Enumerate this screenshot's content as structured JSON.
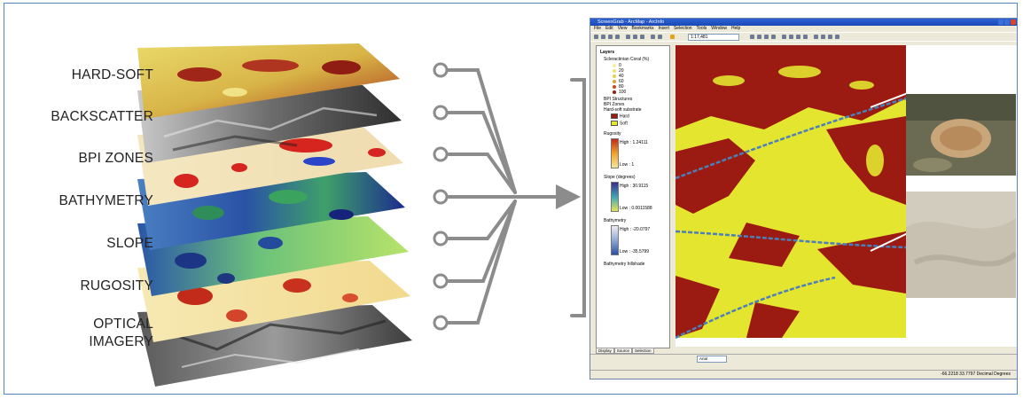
{
  "layers": [
    {
      "label": "HARD-SOFT"
    },
    {
      "label": "BACKSCATTER"
    },
    {
      "label": "BPI ZONES"
    },
    {
      "label": "BATHYMETRY"
    },
    {
      "label": "SLOPE"
    },
    {
      "label": "RUGOSITY"
    },
    {
      "label": "OPTICAL",
      "label2": "IMAGERY"
    }
  ],
  "arcmap": {
    "title": "ScreenGrab - ArcMap - ArcInfo",
    "menu": [
      "File",
      "Edit",
      "View",
      "Bookmarks",
      "Insert",
      "Selection",
      "Tools",
      "Window",
      "Help"
    ],
    "scale": "1:17,481",
    "toc": {
      "root": "Layers",
      "coral": "Scleractinian Coral (%)",
      "coral_classes": [
        "0",
        "20",
        "40",
        "60",
        "80",
        "100"
      ],
      "bpi_structures": "BPI Structures",
      "bpi_zones": "BPI Zones",
      "hard_soft": "Hard-soft substrate",
      "hard": "Hard",
      "soft": "Soft",
      "rugosity": "Rugosity",
      "rugosity_high": "High : 1.24111",
      "rugosity_low": "Low : 1",
      "slope": "Slope (degrees)",
      "slope_high": "High : 30.9115",
      "slope_low": "Low : 0.0011588",
      "bathymetry": "Bathymetry",
      "bathy_high": "High : -20.0797",
      "bathy_low": "Low : -35.5799",
      "hillshade": "Bathymetry hillshade"
    },
    "tabs": [
      "Display",
      "Source",
      "Selection"
    ],
    "font": "Arial",
    "status": "-66.2218  33.7797 Decimal Degrees"
  },
  "colors": {
    "hard": "#9b1b12",
    "soft": "#e6e832",
    "connector": "#8c8c8c",
    "frame": "#5b86c4"
  }
}
